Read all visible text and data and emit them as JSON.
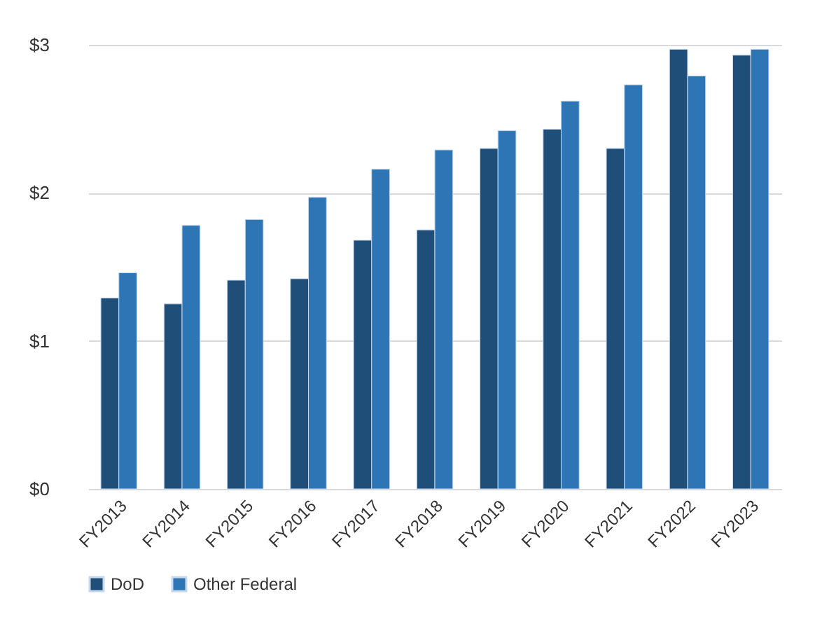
{
  "chart_data": {
    "type": "bar",
    "categories": [
      "FY2013",
      "FY2014",
      "FY2015",
      "FY2016",
      "FY2017",
      "FY2018",
      "FY2019",
      "FY2020",
      "FY2021",
      "FY2022",
      "FY2023"
    ],
    "series": [
      {
        "name": "DoD",
        "color": "#1f4e79",
        "values": [
          1.29,
          1.25,
          1.41,
          1.42,
          1.68,
          1.75,
          2.3,
          2.43,
          2.3,
          2.97,
          2.93
        ]
      },
      {
        "name": "Other Federal",
        "color": "#2e75b6",
        "values": [
          1.46,
          1.78,
          1.82,
          1.97,
          2.16,
          2.29,
          2.42,
          2.62,
          2.73,
          2.79,
          2.97
        ]
      }
    ],
    "ylim": [
      0,
      3
    ],
    "yticks": [
      {
        "value": 0,
        "label": "$0"
      },
      {
        "value": 1,
        "label": "$1"
      },
      {
        "value": 2,
        "label": "$2"
      },
      {
        "value": 3,
        "label": "$3"
      }
    ],
    "grid": "y",
    "legend": "bottom"
  }
}
